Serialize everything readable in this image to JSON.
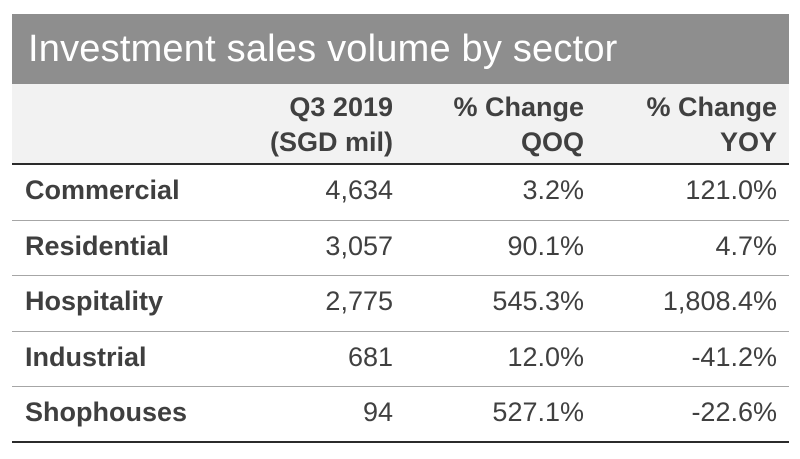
{
  "chart_data": {
    "type": "table",
    "title": "Investment sales volume by sector",
    "columns": [
      {
        "line1": "",
        "line2": ""
      },
      {
        "line1": "Q3 2019",
        "line2": "(SGD mil)"
      },
      {
        "line1": "% Change",
        "line2": "QOQ"
      },
      {
        "line1": "% Change",
        "line2": "YOY"
      }
    ],
    "rows": [
      {
        "sector": "Commercial",
        "volume": "4,634",
        "qoq": "3.2%",
        "yoy": "121.0%"
      },
      {
        "sector": "Residential",
        "volume": "3,057",
        "qoq": "90.1%",
        "yoy": "4.7%"
      },
      {
        "sector": "Hospitality",
        "volume": "2,775",
        "qoq": "545.3%",
        "yoy": "1,808.4%"
      },
      {
        "sector": "Industrial",
        "volume": "681",
        "qoq": "12.0%",
        "yoy": "-41.2%"
      },
      {
        "sector": "Shophouses",
        "volume": "94",
        "qoq": "527.1%",
        "yoy": "-22.6%"
      }
    ]
  },
  "colors": {
    "title_bg": "#8e8e8e",
    "header_bg": "#f2f2f2",
    "text": "#404040"
  }
}
